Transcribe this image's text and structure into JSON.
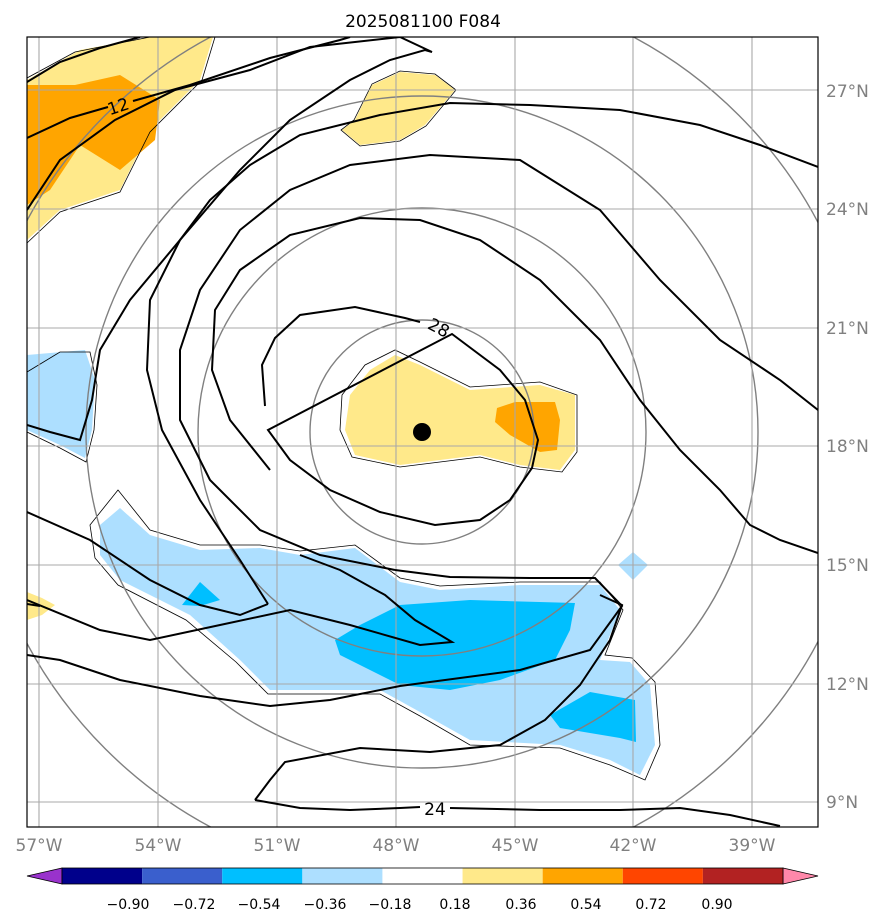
{
  "title": "2025081100 F084",
  "map": {
    "lon_ticks": [
      "57°W",
      "54°W",
      "51°W",
      "48°W",
      "45°W",
      "42°W",
      "39°W"
    ],
    "lat_ticks": [
      "27°N",
      "24°N",
      "21°N",
      "18°N",
      "15°N",
      "12°N",
      "9°N"
    ],
    "lon_range": [
      -57.3,
      -37.3
    ],
    "lat_range": [
      8.3,
      28.3
    ],
    "center_marker": {
      "lon": -47.4,
      "lat": 18.4,
      "color": "#000000"
    },
    "contour_labels": [
      "12",
      "28",
      "24"
    ],
    "shading_colors": {
      "pos_1": "#ffe98a",
      "pos_2": "#ffa500",
      "neg_1": "#addfff",
      "neg_2": "#00bfff"
    }
  },
  "colorbar": {
    "levels": [
      "−0.90",
      "−0.72",
      "−0.54",
      "−0.36",
      "−0.18",
      "0.18",
      "0.36",
      "0.54",
      "0.72",
      "0.90"
    ],
    "colors": [
      "#9932cc",
      "#00008b",
      "#3a5fcd",
      "#00bfff",
      "#addfff",
      "#ffffff",
      "#ffe98a",
      "#ffa500",
      "#ff4500",
      "#b22222",
      "#ff88aa"
    ]
  }
}
